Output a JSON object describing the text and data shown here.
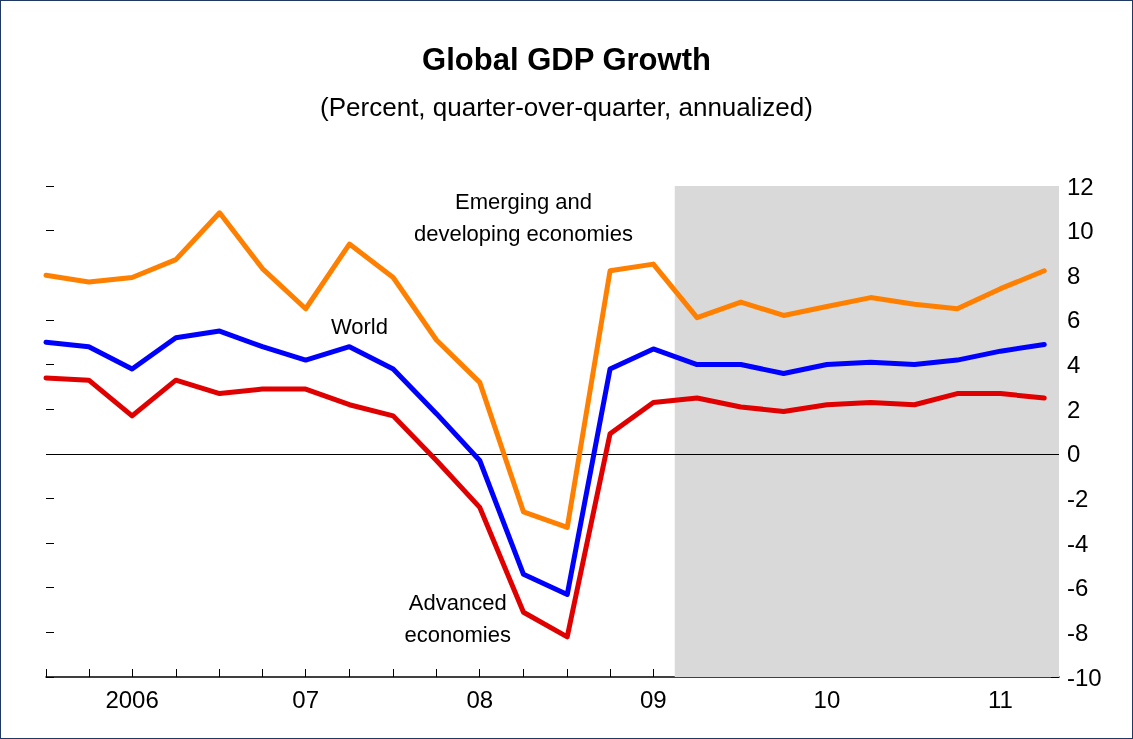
{
  "chart_data": {
    "type": "line",
    "title": "Global GDP Growth",
    "subtitle": "(Percent, quarter-over-quarter, annualized)",
    "x": [
      "2006-01",
      "2006-04",
      "2006-07",
      "2006-10",
      "2007-01",
      "2007-04",
      "2007-07",
      "2007-10",
      "2008-01",
      "2008-04",
      "2008-07",
      "2008-10",
      "2009-01",
      "2009-04",
      "2009-07",
      "2009-10",
      "2010-01",
      "2010-04",
      "2010-07",
      "2010-10",
      "2011-01",
      "2011-04",
      "2011-07",
      "2011-10"
    ],
    "series": [
      {
        "name": "Emerging and\ndeveloping economies",
        "color": "#ff8000",
        "values": [
          8.0,
          7.7,
          7.9,
          8.7,
          10.8,
          8.3,
          6.5,
          9.4,
          7.9,
          5.1,
          3.2,
          -2.6,
          -3.3,
          8.2,
          8.5,
          6.1,
          6.8,
          6.2,
          6.6,
          7.0,
          6.7,
          6.5,
          7.4,
          8.2
        ]
      },
      {
        "name": "World",
        "color": "#0000ff",
        "values": [
          5.0,
          4.8,
          3.8,
          5.2,
          5.5,
          4.8,
          4.2,
          4.8,
          3.8,
          1.8,
          -0.3,
          -5.4,
          -6.3,
          3.8,
          4.7,
          4.0,
          4.0,
          3.6,
          4.0,
          4.1,
          4.0,
          4.2,
          4.6,
          4.9
        ]
      },
      {
        "name": "Advanced\neconomies",
        "color": "#e00000",
        "values": [
          3.4,
          3.3,
          1.7,
          3.3,
          2.7,
          2.9,
          2.9,
          2.2,
          1.7,
          -0.3,
          -2.4,
          -7.1,
          -8.2,
          0.9,
          2.3,
          2.5,
          2.1,
          1.9,
          2.2,
          2.3,
          2.2,
          2.7,
          2.7,
          2.5
        ]
      }
    ],
    "xlim": [
      "2006-01",
      "2011-11"
    ],
    "xticks": [
      {
        "value": "2006-01",
        "label": null
      },
      {
        "value": "2006-04",
        "label": null
      },
      {
        "value": "2006-07",
        "label": "2006"
      },
      {
        "value": "2006-10",
        "label": null
      },
      {
        "value": "2007-01",
        "label": null
      },
      {
        "value": "2007-04",
        "label": null
      },
      {
        "value": "2007-07",
        "label": "07"
      },
      {
        "value": "2007-10",
        "label": null
      },
      {
        "value": "2008-01",
        "label": null
      },
      {
        "value": "2008-04",
        "label": null
      },
      {
        "value": "2008-07",
        "label": "08"
      },
      {
        "value": "2008-10",
        "label": null
      },
      {
        "value": "2009-01",
        "label": null
      },
      {
        "value": "2009-04",
        "label": null
      },
      {
        "value": "2009-07",
        "label": "09"
      },
      {
        "value": "2009-10",
        "label": null
      },
      {
        "value": "2010-01",
        "label": null
      },
      {
        "value": "2010-04",
        "label": null
      },
      {
        "value": "2010-07",
        "label": "10"
      },
      {
        "value": "2010-10",
        "label": null
      },
      {
        "value": "2011-01",
        "label": null
      },
      {
        "value": "2011-04",
        "label": null
      },
      {
        "value": "2011-07",
        "label": "11"
      },
      {
        "value": "2011-10",
        "label": null
      }
    ],
    "ylim": [
      -10,
      12
    ],
    "yticks": [
      -10,
      -8,
      -6,
      -4,
      -2,
      0,
      2,
      4,
      6,
      8,
      10,
      12
    ],
    "ref_lines": [
      {
        "axis": "y",
        "value": 0,
        "color": "#000000"
      }
    ],
    "bands": [
      {
        "axis": "x",
        "from": "2009-08-15",
        "to": "2011-11",
        "color": "#d9d9d9"
      }
    ],
    "grid": false,
    "legend": false,
    "marker": "none",
    "line_style": "solid"
  }
}
